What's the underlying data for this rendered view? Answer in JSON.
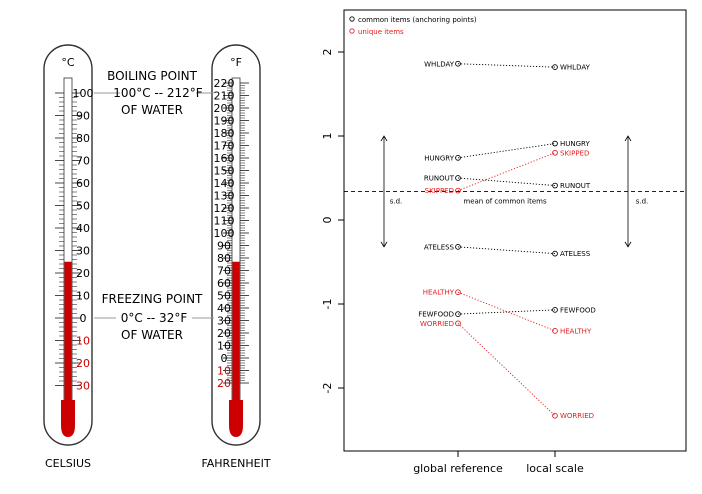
{
  "thermometers": {
    "celsius": {
      "unit": "°C",
      "caption": "CELSIUS",
      "ticks_above_zero": [
        "100",
        "90",
        "80",
        "70",
        "60",
        "50",
        "40",
        "30",
        "20",
        "10",
        "0"
      ],
      "ticks_below_zero": [
        "10",
        "20",
        "30"
      ],
      "mercury_level": 25
    },
    "fahrenheit": {
      "unit": "°F",
      "caption": "FAHRENHEIT",
      "ticks_above_zero": [
        "220",
        "210",
        "200",
        "190",
        "180",
        "170",
        "160",
        "150",
        "140",
        "130",
        "120",
        "110",
        "100",
        "90",
        "80",
        "70",
        "60",
        "50",
        "40",
        "30",
        "20",
        "10",
        "0"
      ],
      "ticks_below_zero": [
        "10",
        "20"
      ],
      "mercury_level": 77
    },
    "boiling": {
      "line1": "BOILING POINT",
      "line2": "100°C -- 212°F",
      "line3": "OF WATER"
    },
    "freezing": {
      "line1": "FREEZING POINT",
      "line2": "0°C -- 32°F",
      "line3": "OF WATER"
    }
  },
  "chart_data": {
    "type": "scatter",
    "legend": [
      {
        "label": "common items (anchoring points)",
        "color": "#000000"
      },
      {
        "label": "unique items",
        "color": "#e41a1c"
      }
    ],
    "categories": [
      "global reference",
      "local scale"
    ],
    "ylim": [
      -2.75,
      2.5
    ],
    "yticks": [
      -2,
      -1,
      0,
      1,
      2
    ],
    "mean_line": 0.34,
    "mean_label": "mean of common items",
    "sd_label": "s.d.",
    "sd_range": [
      -0.32,
      1.0
    ],
    "common_items": [
      {
        "name": "WHLDAY",
        "global": 1.86,
        "local": 1.82
      },
      {
        "name": "HUNGRY",
        "global": 0.74,
        "local": 0.91
      },
      {
        "name": "RUNOUT",
        "global": 0.5,
        "local": 0.41
      },
      {
        "name": "ATELESS",
        "global": -0.32,
        "local": -0.4
      },
      {
        "name": "FEWFOOD",
        "global": -1.12,
        "local": -1.07
      }
    ],
    "unique_items": [
      {
        "name": "SKIPPED",
        "global": 0.35,
        "local": 0.8
      },
      {
        "name": "HEALTHY",
        "global": -0.86,
        "local": -1.32
      },
      {
        "name": "WORRIED",
        "global": -1.23,
        "local": -2.33
      }
    ],
    "colors": {
      "common": "#000000",
      "unique": "#e41a1c",
      "mercury": "#cc0000"
    }
  }
}
